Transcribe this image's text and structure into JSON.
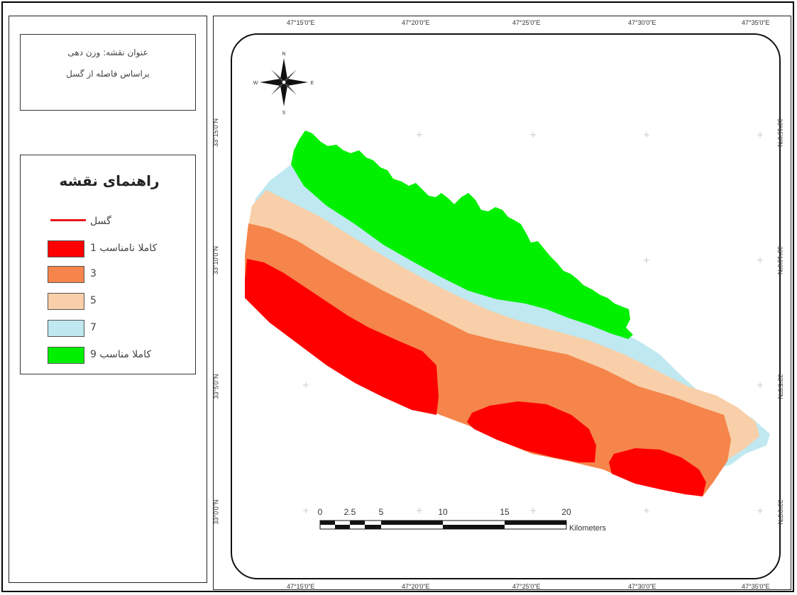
{
  "map": {
    "title_line1": "عنوان نقشه: وزن دهی",
    "title_line2": "براساس فاصله از گسل",
    "legend_title": "راهنمای نقشه",
    "legend": [
      {
        "label": "گسل",
        "kind": "line",
        "color": "#e8161d"
      },
      {
        "label": "کاملا نامناسب 1",
        "kind": "fill",
        "color": "#ff0000"
      },
      {
        "label": "3",
        "kind": "fill",
        "color": "#f5854a"
      },
      {
        "label": "5",
        "kind": "fill",
        "color": "#f8cfa8"
      },
      {
        "label": "7",
        "kind": "fill",
        "color": "#bfe8f0"
      },
      {
        "label": "کاملا مناسب 9",
        "kind": "fill",
        "color": "#00f000"
      }
    ],
    "longitudes": [
      "47°15'0\"E",
      "47°20'0\"E",
      "47°25'0\"E",
      "47°30'0\"E",
      "47°35'0\"E"
    ],
    "latitudes": [
      "33°15'0\"N",
      "33°10'0\"N",
      "33°5'0\"N",
      "33°0'0\"N"
    ],
    "north_arrow": {
      "n": "N",
      "s": "S",
      "e": "E",
      "w": "W"
    },
    "scale_bar": {
      "ticks": [
        "0",
        "2.5",
        "5",
        "10",
        "15",
        "20"
      ],
      "unit": "Kilometers"
    }
  }
}
